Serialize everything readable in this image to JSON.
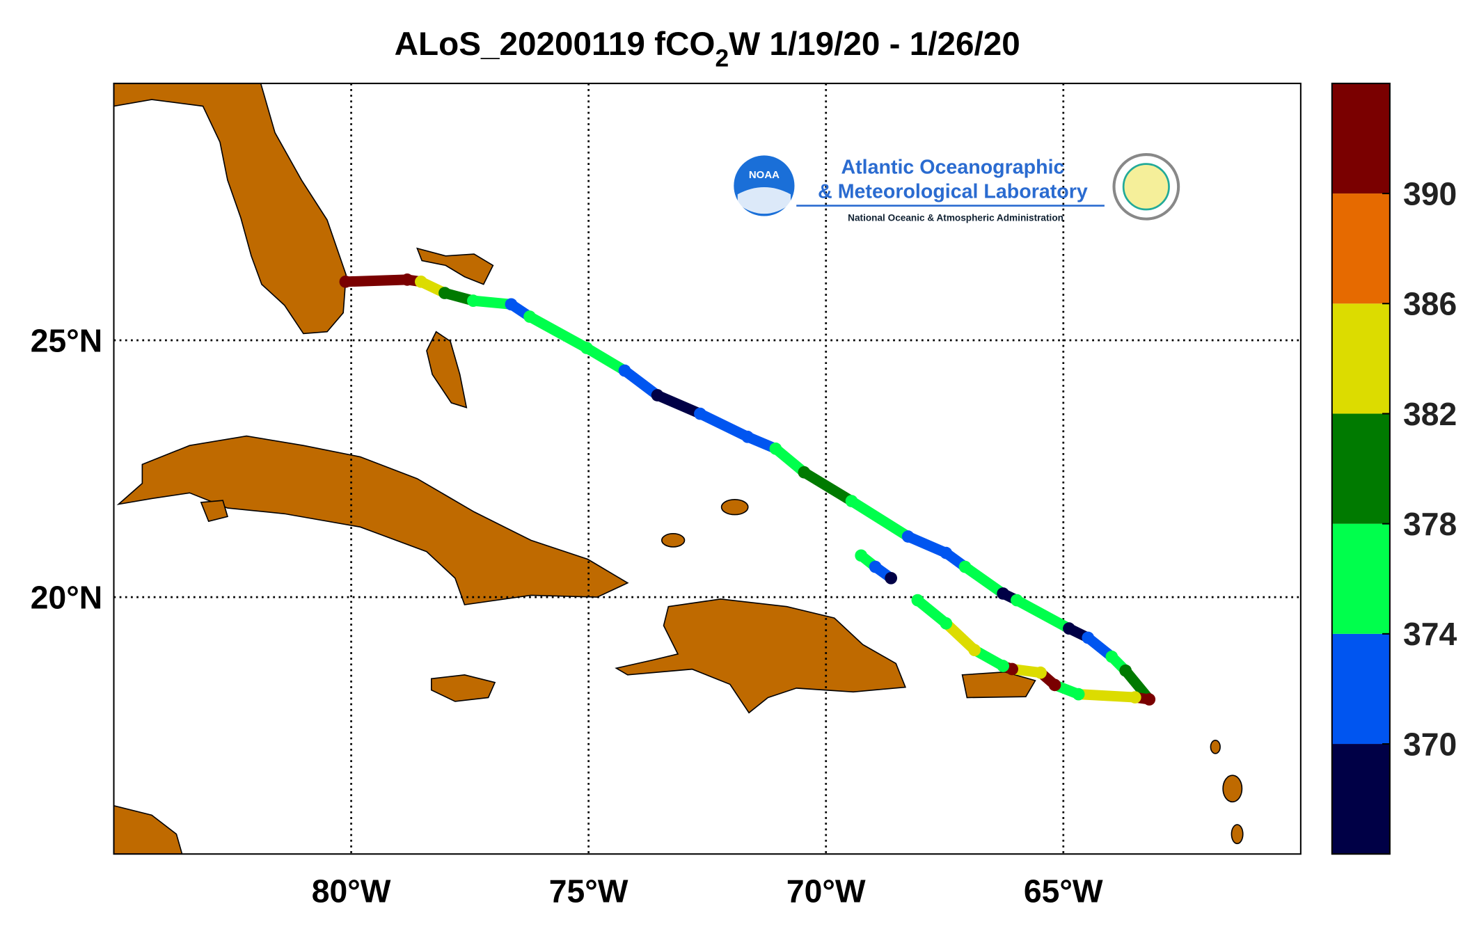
{
  "chart_data": {
    "type": "map-track",
    "title_prefix": "ALoS_20200119 fCO",
    "title_sub": "2",
    "title_suffix": "W 1/19/20 - 1/26/20",
    "xlim": [
      -85,
      -60
    ],
    "ylim": [
      15,
      30
    ],
    "xticks": [
      {
        "value": -80,
        "label": "80°W"
      },
      {
        "value": -75,
        "label": "75°W"
      },
      {
        "value": -70,
        "label": "70°W"
      },
      {
        "value": -65,
        "label": "65°W"
      }
    ],
    "yticks": [
      {
        "value": 20,
        "label": "20°N"
      },
      {
        "value": 25,
        "label": "25°N"
      }
    ],
    "grid": true,
    "x": [
      -80.12,
      -78.82,
      -78.53,
      -78.03,
      -77.43,
      -76.63,
      -76.24,
      -75.04,
      -74.24,
      -73.55,
      -72.65,
      -71.65,
      -71.06,
      -70.46,
      -69.46,
      -68.27,
      -67.47,
      -67.07,
      -66.27,
      -65.98,
      -64.88,
      -64.48,
      -63.98,
      -63.69,
      -63.19,
      -63.49,
      -64.68,
      -65.18,
      -65.48,
      -66.08,
      -66.27,
      -66.87,
      -67.47,
      -68.07,
      null,
      -69.26,
      -68.96,
      -68.63
    ],
    "y": [
      26.14,
      26.18,
      26.14,
      25.92,
      25.77,
      25.7,
      25.46,
      24.85,
      24.41,
      23.93,
      23.57,
      23.12,
      22.89,
      22.43,
      21.87,
      21.18,
      20.86,
      20.59,
      20.07,
      19.94,
      19.39,
      19.21,
      18.84,
      18.57,
      18.01,
      18.05,
      18.11,
      18.29,
      18.53,
      18.6,
      18.66,
      18.97,
      19.49,
      19.94,
      null,
      20.81,
      20.59,
      20.37
    ],
    "values": [
      392,
      391,
      384,
      380,
      376,
      372,
      376,
      375,
      372,
      368,
      371,
      372,
      375,
      380,
      376,
      371,
      372,
      376,
      369,
      376,
      368,
      372,
      376,
      378,
      392,
      384,
      376,
      392,
      384,
      392,
      377,
      384,
      376,
      376,
      null,
      376,
      372,
      368
    ],
    "colorbar": {
      "lim": [
        366,
        394
      ],
      "ticks": [
        370,
        374,
        378,
        382,
        386,
        390
      ],
      "colors": [
        "#000046",
        "#0055f0",
        "#00ff4c",
        "#007a00",
        "#dcdc00",
        "#e66a00",
        "#7a0000"
      ]
    },
    "logo": {
      "badge": "NOAA",
      "line1": "Atlantic Oceanographic",
      "line2": "& Meteorological Laboratory",
      "line3": "National Oceanic & Atmospheric Administration"
    }
  }
}
